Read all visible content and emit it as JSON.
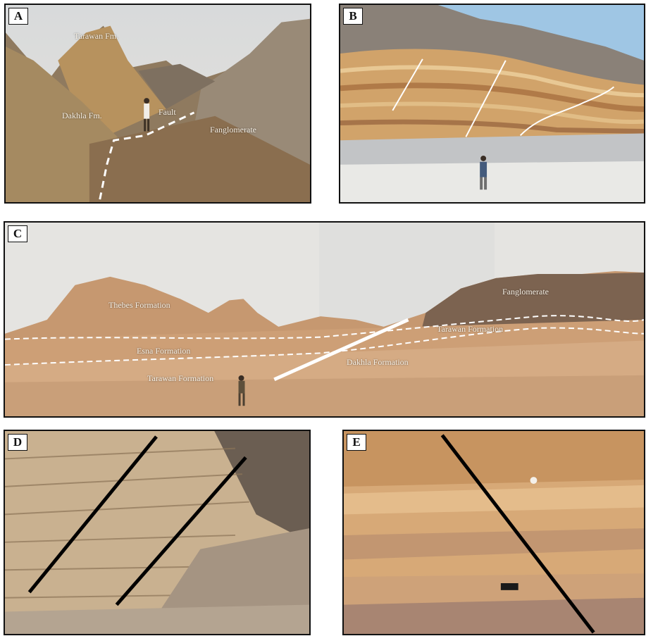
{
  "figure": {
    "panels": [
      {
        "label": "A",
        "annotations": [
          "Tarawan Fm.",
          "Dakhla Fm.",
          "Fault",
          "Fanglomerate"
        ]
      },
      {
        "label": "B",
        "annotations": []
      },
      {
        "label": "C",
        "annotations": [
          "Thebes Formation",
          "Esna Formation",
          "Tarawan Formation",
          "Fanglomerate",
          "Tarawan Formation",
          "Dakhla Formation"
        ]
      },
      {
        "label": "D",
        "annotations": []
      },
      {
        "label": "E",
        "annotations": []
      }
    ]
  },
  "colors": {
    "sky": "#d9dde0",
    "sand": "#c9a47e",
    "rock": "#b88a5b",
    "dark_rock": "#6f5a44",
    "annotation_line": "#ffffff",
    "fault_line_dark": "#000000"
  },
  "icons": [
    "dashed-fault-line",
    "solid-fault-line",
    "person-figure"
  ]
}
